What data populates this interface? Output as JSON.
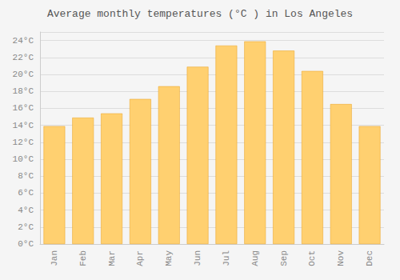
{
  "chart_data": {
    "type": "bar",
    "title": "Average monthly temperatures (°C ) in Los Angeles",
    "categories": [
      "Jan",
      "Feb",
      "Mar",
      "Apr",
      "May",
      "Jun",
      "Jul",
      "Aug",
      "Sep",
      "Oct",
      "Nov",
      "Dec"
    ],
    "values": [
      13.9,
      14.9,
      15.4,
      17.1,
      18.6,
      20.9,
      23.4,
      23.9,
      22.8,
      20.4,
      16.5,
      13.9
    ],
    "color": "#FFD070",
    "ylim": [
      0,
      25
    ],
    "yticks": [
      {
        "value": 0,
        "label": "0°C"
      },
      {
        "value": 2,
        "label": "2°C"
      },
      {
        "value": 4,
        "label": "4°C"
      },
      {
        "value": 6,
        "label": "6°C"
      },
      {
        "value": 8,
        "label": "8°C"
      },
      {
        "value": 10,
        "label": "10°C"
      },
      {
        "value": 12,
        "label": "12°C"
      },
      {
        "value": 14,
        "label": "14°C"
      },
      {
        "value": 16,
        "label": "16°C"
      },
      {
        "value": 18,
        "label": "18°C"
      },
      {
        "value": 20,
        "label": "20°C"
      },
      {
        "value": 22,
        "label": "22°C"
      },
      {
        "value": 24,
        "label": "24°C"
      }
    ],
    "grid": true
  }
}
